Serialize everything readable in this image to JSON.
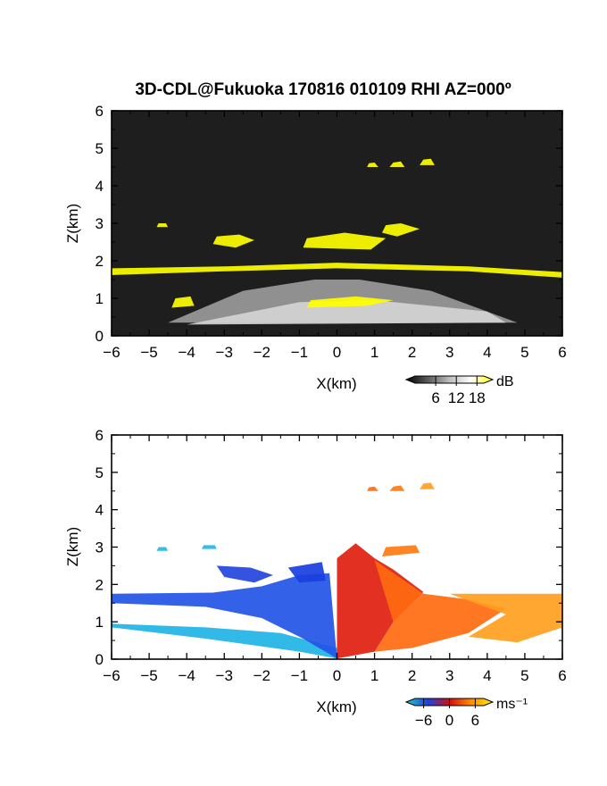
{
  "title": "3D-CDL@Fukuoka 170816 010109 RHI AZ=000º",
  "chart_data": [
    {
      "type": "heatmap",
      "panel": "top",
      "quantity": "signal",
      "xlabel": "X(km)",
      "ylabel": "Z(km)",
      "xlim": [
        -6,
        6
      ],
      "ylim": [
        0,
        6
      ],
      "xticks": [
        "-6",
        "-5",
        "-4",
        "-3",
        "-2",
        "-1",
        "0",
        "1",
        "2",
        "3",
        "4",
        "5",
        "6"
      ],
      "yticks": [
        "0",
        "1",
        "2",
        "3",
        "4",
        "5",
        "6"
      ],
      "background_color": "#1e1e1e",
      "colorbar": {
        "unit": "dB",
        "ticks": [
          "6",
          "12",
          "18"
        ],
        "range": [
          0,
          20
        ],
        "colors": [
          "#000000",
          "#5a5a5a",
          "#bdbdbd",
          "#ffffff",
          "#ffff00"
        ]
      },
      "regions": [
        {
          "feature": "aerosol layer cone",
          "color": "#9a9a9a",
          "polygon": [
            [
              -4.5,
              0.35
            ],
            [
              4.8,
              0.35
            ],
            [
              2.5,
              1.2
            ],
            [
              0.6,
              1.5
            ],
            [
              -0.6,
              1.5
            ],
            [
              -2.5,
              1.2
            ]
          ]
        },
        {
          "feature": "bright near-ground layer",
          "color": "#d4d4d4",
          "polygon": [
            [
              -3.5,
              0.4
            ],
            [
              -1.0,
              0.9
            ],
            [
              1.0,
              0.95
            ],
            [
              4.0,
              0.65
            ],
            [
              4.5,
              0.35
            ],
            [
              -4.0,
              0.3
            ]
          ]
        },
        {
          "feature": "cloud base layer",
          "color": "#ffff00",
          "polygon": [
            [
              -6,
              1.62
            ],
            [
              -3.0,
              1.72
            ],
            [
              0,
              1.8
            ],
            [
              3.5,
              1.72
            ],
            [
              6,
              1.55
            ],
            [
              6,
              1.7
            ],
            [
              3.5,
              1.85
            ],
            [
              0,
              1.95
            ],
            [
              -3.0,
              1.85
            ],
            [
              -6,
              1.8
            ]
          ]
        },
        {
          "feature": "cloud cluster",
          "color": "#ffff00",
          "polygon": [
            [
              -3.3,
              2.45
            ],
            [
              -2.7,
              2.35
            ],
            [
              -2.2,
              2.55
            ],
            [
              -2.6,
              2.7
            ],
            [
              -3.2,
              2.65
            ]
          ]
        },
        {
          "feature": "cloud cluster",
          "color": "#ffff00",
          "polygon": [
            [
              -0.9,
              2.35
            ],
            [
              0.9,
              2.3
            ],
            [
              1.3,
              2.6
            ],
            [
              0.2,
              2.75
            ],
            [
              -0.8,
              2.6
            ]
          ]
        },
        {
          "feature": "cloud cluster",
          "color": "#ffff00",
          "polygon": [
            [
              1.2,
              2.75
            ],
            [
              1.6,
              2.65
            ],
            [
              2.2,
              2.85
            ],
            [
              1.7,
              3.0
            ],
            [
              1.3,
              2.95
            ]
          ]
        },
        {
          "feature": "low cloud",
          "color": "#ffff00",
          "polygon": [
            [
              -0.8,
              0.75
            ],
            [
              0.8,
              0.8
            ],
            [
              1.5,
              0.95
            ],
            [
              0.5,
              1.05
            ],
            [
              -0.7,
              0.95
            ]
          ]
        },
        {
          "feature": "low cloud",
          "color": "#ffff00",
          "polygon": [
            [
              -4.4,
              0.75
            ],
            [
              -3.8,
              0.8
            ],
            [
              -3.9,
              1.05
            ],
            [
              -4.3,
              1.0
            ]
          ]
        },
        {
          "feature": "upper cloud",
          "color": "#ffff00",
          "polygon": [
            [
              0.8,
              4.5
            ],
            [
              1.1,
              4.5
            ],
            [
              1.0,
              4.62
            ],
            [
              0.85,
              4.6
            ]
          ]
        },
        {
          "feature": "upper cloud",
          "color": "#ffff00",
          "polygon": [
            [
              1.4,
              4.5
            ],
            [
              1.8,
              4.5
            ],
            [
              1.7,
              4.65
            ],
            [
              1.5,
              4.62
            ]
          ]
        },
        {
          "feature": "upper cloud",
          "color": "#ffff00",
          "polygon": [
            [
              2.2,
              4.55
            ],
            [
              2.6,
              4.55
            ],
            [
              2.5,
              4.72
            ],
            [
              2.3,
              4.7
            ]
          ]
        },
        {
          "feature": "small cloud",
          "color": "#ffff00",
          "polygon": [
            [
              -4.8,
              2.9
            ],
            [
              -4.5,
              2.9
            ],
            [
              -4.55,
              3.0
            ],
            [
              -4.75,
              3.0
            ]
          ]
        }
      ]
    },
    {
      "type": "heatmap",
      "panel": "bottom",
      "quantity": "radial velocity",
      "xlabel": "X(km)",
      "ylabel": "Z(km)",
      "xlim": [
        -6,
        6
      ],
      "ylim": [
        0,
        6
      ],
      "xticks": [
        "-6",
        "-5",
        "-4",
        "-3",
        "-2",
        "-1",
        "0",
        "1",
        "2",
        "3",
        "4",
        "5",
        "6"
      ],
      "yticks": [
        "0",
        "1",
        "2",
        "3",
        "4",
        "5",
        "6"
      ],
      "background_color": "#ffffff",
      "colorbar": {
        "unit": "ms⁻¹",
        "ticks": [
          "−6",
          "0",
          "6"
        ],
        "range": [
          -8,
          8
        ],
        "colors": [
          "#22cccc",
          "#1a40e0",
          "#d01010",
          "#ff8c00",
          "#ffee00"
        ]
      },
      "regions": [
        {
          "feature": "negative velocity lower",
          "color": "#1fb3e6",
          "polygon": [
            [
              -6,
              0.95
            ],
            [
              -3.5,
              0.85
            ],
            [
              -1.5,
              0.7
            ],
            [
              0,
              0.3
            ],
            [
              0,
              0.02
            ],
            [
              -1.0,
              0.2
            ],
            [
              -3.5,
              0.55
            ],
            [
              -6,
              0.85
            ]
          ]
        },
        {
          "feature": "negative velocity main",
          "color": "#2255e6",
          "polygon": [
            [
              0,
              0.02
            ],
            [
              -0.2,
              2.3
            ],
            [
              -1.0,
              2.25
            ],
            [
              -2.0,
              1.95
            ],
            [
              -3.3,
              1.78
            ],
            [
              -6,
              1.75
            ],
            [
              -6,
              1.5
            ],
            [
              -3.5,
              1.4
            ],
            [
              -2.0,
              1.1
            ],
            [
              -0.9,
              0.55
            ]
          ]
        },
        {
          "feature": "negative velocity upper",
          "color": "#2244dd",
          "polygon": [
            [
              -3.2,
              2.5
            ],
            [
              -2.3,
              2.45
            ],
            [
              -1.7,
              2.25
            ],
            [
              -2.2,
              2.05
            ],
            [
              -3.0,
              2.2
            ]
          ]
        },
        {
          "feature": "negative velocity upper",
          "color": "#1a3ee0",
          "polygon": [
            [
              -1.3,
              2.45
            ],
            [
              -0.4,
              2.6
            ],
            [
              -0.3,
              2.1
            ],
            [
              -1.0,
              2.05
            ]
          ]
        },
        {
          "feature": "positive velocity near",
          "color": "#e02010",
          "polygon": [
            [
              0,
              0.02
            ],
            [
              0,
              2.7
            ],
            [
              0.5,
              3.1
            ],
            [
              1.0,
              2.7
            ],
            [
              1.5,
              2.4
            ],
            [
              2.3,
              1.8
            ],
            [
              1.5,
              1.0
            ],
            [
              1.0,
              0.2
            ]
          ]
        },
        {
          "feature": "positive velocity mid",
          "color": "#ff6a10",
          "polygon": [
            [
              1.0,
              2.65
            ],
            [
              2.3,
              1.75
            ],
            [
              3.5,
              1.6
            ],
            [
              4.5,
              1.35
            ],
            [
              3.5,
              0.7
            ],
            [
              2.0,
              0.3
            ],
            [
              1.0,
              0.2
            ],
            [
              1.5,
              1.0
            ]
          ]
        },
        {
          "feature": "positive velocity far",
          "color": "#ffa020",
          "polygon": [
            [
              3.0,
              1.75
            ],
            [
              6,
              1.75
            ],
            [
              6,
              0.85
            ],
            [
              4.8,
              0.45
            ],
            [
              3.5,
              0.6
            ],
            [
              4.5,
              1.2
            ]
          ]
        },
        {
          "feature": "positive velocity cluster",
          "color": "#ff7a10",
          "polygon": [
            [
              1.2,
              2.75
            ],
            [
              2.2,
              2.85
            ],
            [
              2.1,
              3.05
            ],
            [
              1.3,
              3.0
            ]
          ]
        },
        {
          "feature": "upper cloud",
          "color": "#ff6a10",
          "polygon": [
            [
              0.8,
              4.5
            ],
            [
              1.1,
              4.5
            ],
            [
              1.0,
              4.62
            ],
            [
              0.85,
              4.6
            ]
          ]
        },
        {
          "feature": "upper cloud",
          "color": "#ff7a10",
          "polygon": [
            [
              1.4,
              4.5
            ],
            [
              1.8,
              4.5
            ],
            [
              1.7,
              4.65
            ],
            [
              1.5,
              4.62
            ]
          ]
        },
        {
          "feature": "upper cloud",
          "color": "#ffa020",
          "polygon": [
            [
              2.2,
              4.55
            ],
            [
              2.6,
              4.55
            ],
            [
              2.5,
              4.72
            ],
            [
              2.3,
              4.7
            ]
          ]
        },
        {
          "feature": "small cloud",
          "color": "#29b6e6",
          "polygon": [
            [
              -4.8,
              2.9
            ],
            [
              -4.5,
              2.9
            ],
            [
              -4.55,
              3.0
            ],
            [
              -4.75,
              3.0
            ]
          ]
        },
        {
          "feature": "small cloud",
          "color": "#29b6e6",
          "polygon": [
            [
              -3.6,
              2.95
            ],
            [
              -3.2,
              2.95
            ],
            [
              -3.25,
              3.05
            ],
            [
              -3.55,
              3.05
            ]
          ]
        }
      ]
    }
  ]
}
